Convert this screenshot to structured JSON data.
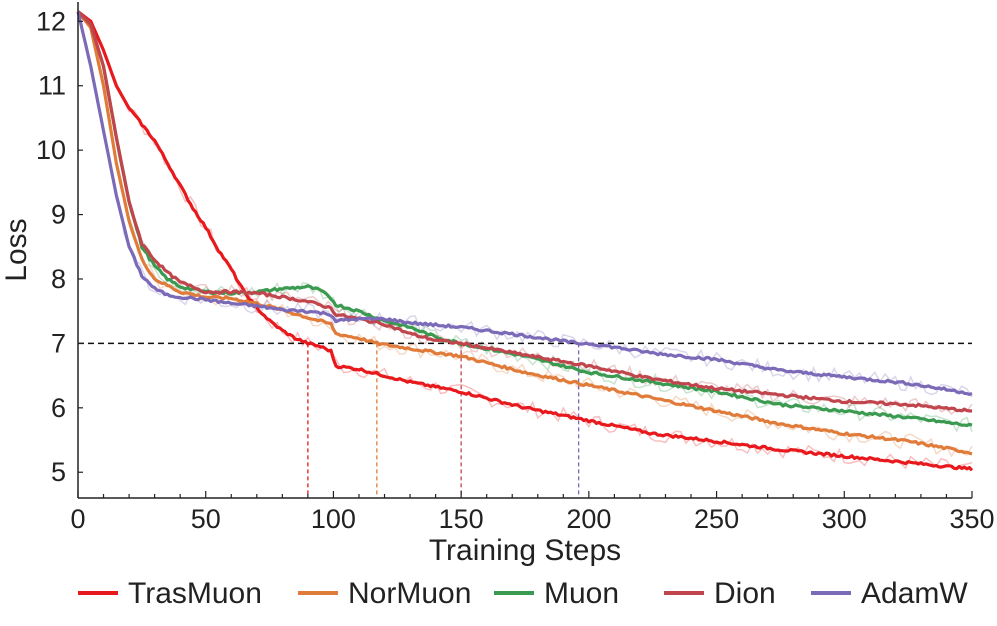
{
  "chart_data": {
    "type": "line",
    "title": "",
    "xlabel": "Training Steps",
    "ylabel": "Loss",
    "xlim": [
      0,
      350
    ],
    "ylim": [
      4.6,
      12.3
    ],
    "xticks": [
      0,
      50,
      100,
      150,
      200,
      250,
      300,
      350
    ],
    "yticks": [
      5,
      6,
      7,
      8,
      9,
      10,
      11,
      12
    ],
    "grid": false,
    "legend_position": "bottom",
    "threshold": {
      "y": 7,
      "style": "dashed",
      "color": "#111111"
    },
    "series": [
      {
        "name": "TrasMuon",
        "color": "#e8191c",
        "cross_step": 90,
        "x": [
          0,
          5,
          10,
          15,
          20,
          25,
          30,
          35,
          40,
          45,
          50,
          55,
          60,
          65,
          70,
          75,
          80,
          85,
          90,
          95,
          99,
          101,
          110,
          120,
          130,
          150,
          175,
          200,
          225,
          250,
          275,
          300,
          325,
          345,
          350
        ],
        "y": [
          12.15,
          12.0,
          11.55,
          11.0,
          10.65,
          10.4,
          10.15,
          9.8,
          9.45,
          9.1,
          8.8,
          8.45,
          8.15,
          7.8,
          7.55,
          7.35,
          7.2,
          7.08,
          7.0,
          6.95,
          6.88,
          6.65,
          6.6,
          6.5,
          6.4,
          6.25,
          6.0,
          5.8,
          5.6,
          5.48,
          5.35,
          5.25,
          5.15,
          5.07,
          5.05
        ]
      },
      {
        "name": "NorMuon",
        "color": "#e07b39",
        "cross_step": 117,
        "x": [
          0,
          5,
          10,
          15,
          20,
          25,
          30,
          35,
          40,
          50,
          60,
          70,
          80,
          90,
          99,
          101,
          110,
          117,
          130,
          150,
          175,
          200,
          225,
          250,
          275,
          300,
          325,
          350
        ],
        "y": [
          12.15,
          11.9,
          11.0,
          9.8,
          8.9,
          8.3,
          8.0,
          7.9,
          7.8,
          7.72,
          7.7,
          7.62,
          7.52,
          7.4,
          7.3,
          7.15,
          7.08,
          7.0,
          6.92,
          6.8,
          6.55,
          6.35,
          6.15,
          5.95,
          5.75,
          5.6,
          5.48,
          5.3
        ]
      },
      {
        "name": "Muon",
        "color": "#3a9a50",
        "cross_step": 150,
        "x": [
          0,
          5,
          10,
          15,
          20,
          25,
          30,
          35,
          40,
          50,
          60,
          70,
          80,
          90,
          95,
          99,
          101,
          110,
          120,
          130,
          140,
          150,
          175,
          200,
          225,
          250,
          275,
          300,
          325,
          350
        ],
        "y": [
          12.15,
          11.95,
          11.3,
          10.2,
          9.2,
          8.5,
          8.2,
          8.0,
          7.88,
          7.8,
          7.78,
          7.8,
          7.85,
          7.88,
          7.82,
          7.7,
          7.6,
          7.5,
          7.35,
          7.25,
          7.1,
          7.0,
          6.8,
          6.55,
          6.4,
          6.25,
          6.05,
          5.95,
          5.85,
          5.72
        ]
      },
      {
        "name": "Dion",
        "color": "#c0454d",
        "cross_step": 150,
        "x": [
          0,
          5,
          10,
          15,
          20,
          25,
          30,
          35,
          40,
          50,
          60,
          70,
          80,
          90,
          99,
          101,
          110,
          120,
          130,
          140,
          150,
          175,
          200,
          225,
          250,
          275,
          300,
          325,
          350
        ],
        "y": [
          12.15,
          11.95,
          11.3,
          10.2,
          9.2,
          8.55,
          8.3,
          8.1,
          7.95,
          7.8,
          7.8,
          7.78,
          7.72,
          7.65,
          7.55,
          7.45,
          7.38,
          7.3,
          7.15,
          7.05,
          7.0,
          6.82,
          6.65,
          6.45,
          6.3,
          6.2,
          6.1,
          6.05,
          5.95
        ]
      },
      {
        "name": "AdamW",
        "color": "#7b6ab8",
        "cross_step": 196,
        "x": [
          0,
          5,
          10,
          15,
          20,
          25,
          30,
          35,
          40,
          50,
          60,
          70,
          80,
          90,
          99,
          101,
          110,
          120,
          130,
          150,
          175,
          196,
          200,
          225,
          250,
          275,
          300,
          325,
          350
        ],
        "y": [
          12.15,
          11.3,
          10.3,
          9.3,
          8.5,
          8.05,
          7.85,
          7.75,
          7.72,
          7.68,
          7.62,
          7.58,
          7.52,
          7.5,
          7.45,
          7.35,
          7.38,
          7.38,
          7.32,
          7.25,
          7.12,
          7.0,
          7.0,
          6.85,
          6.75,
          6.58,
          6.48,
          6.38,
          6.22
        ]
      }
    ]
  }
}
